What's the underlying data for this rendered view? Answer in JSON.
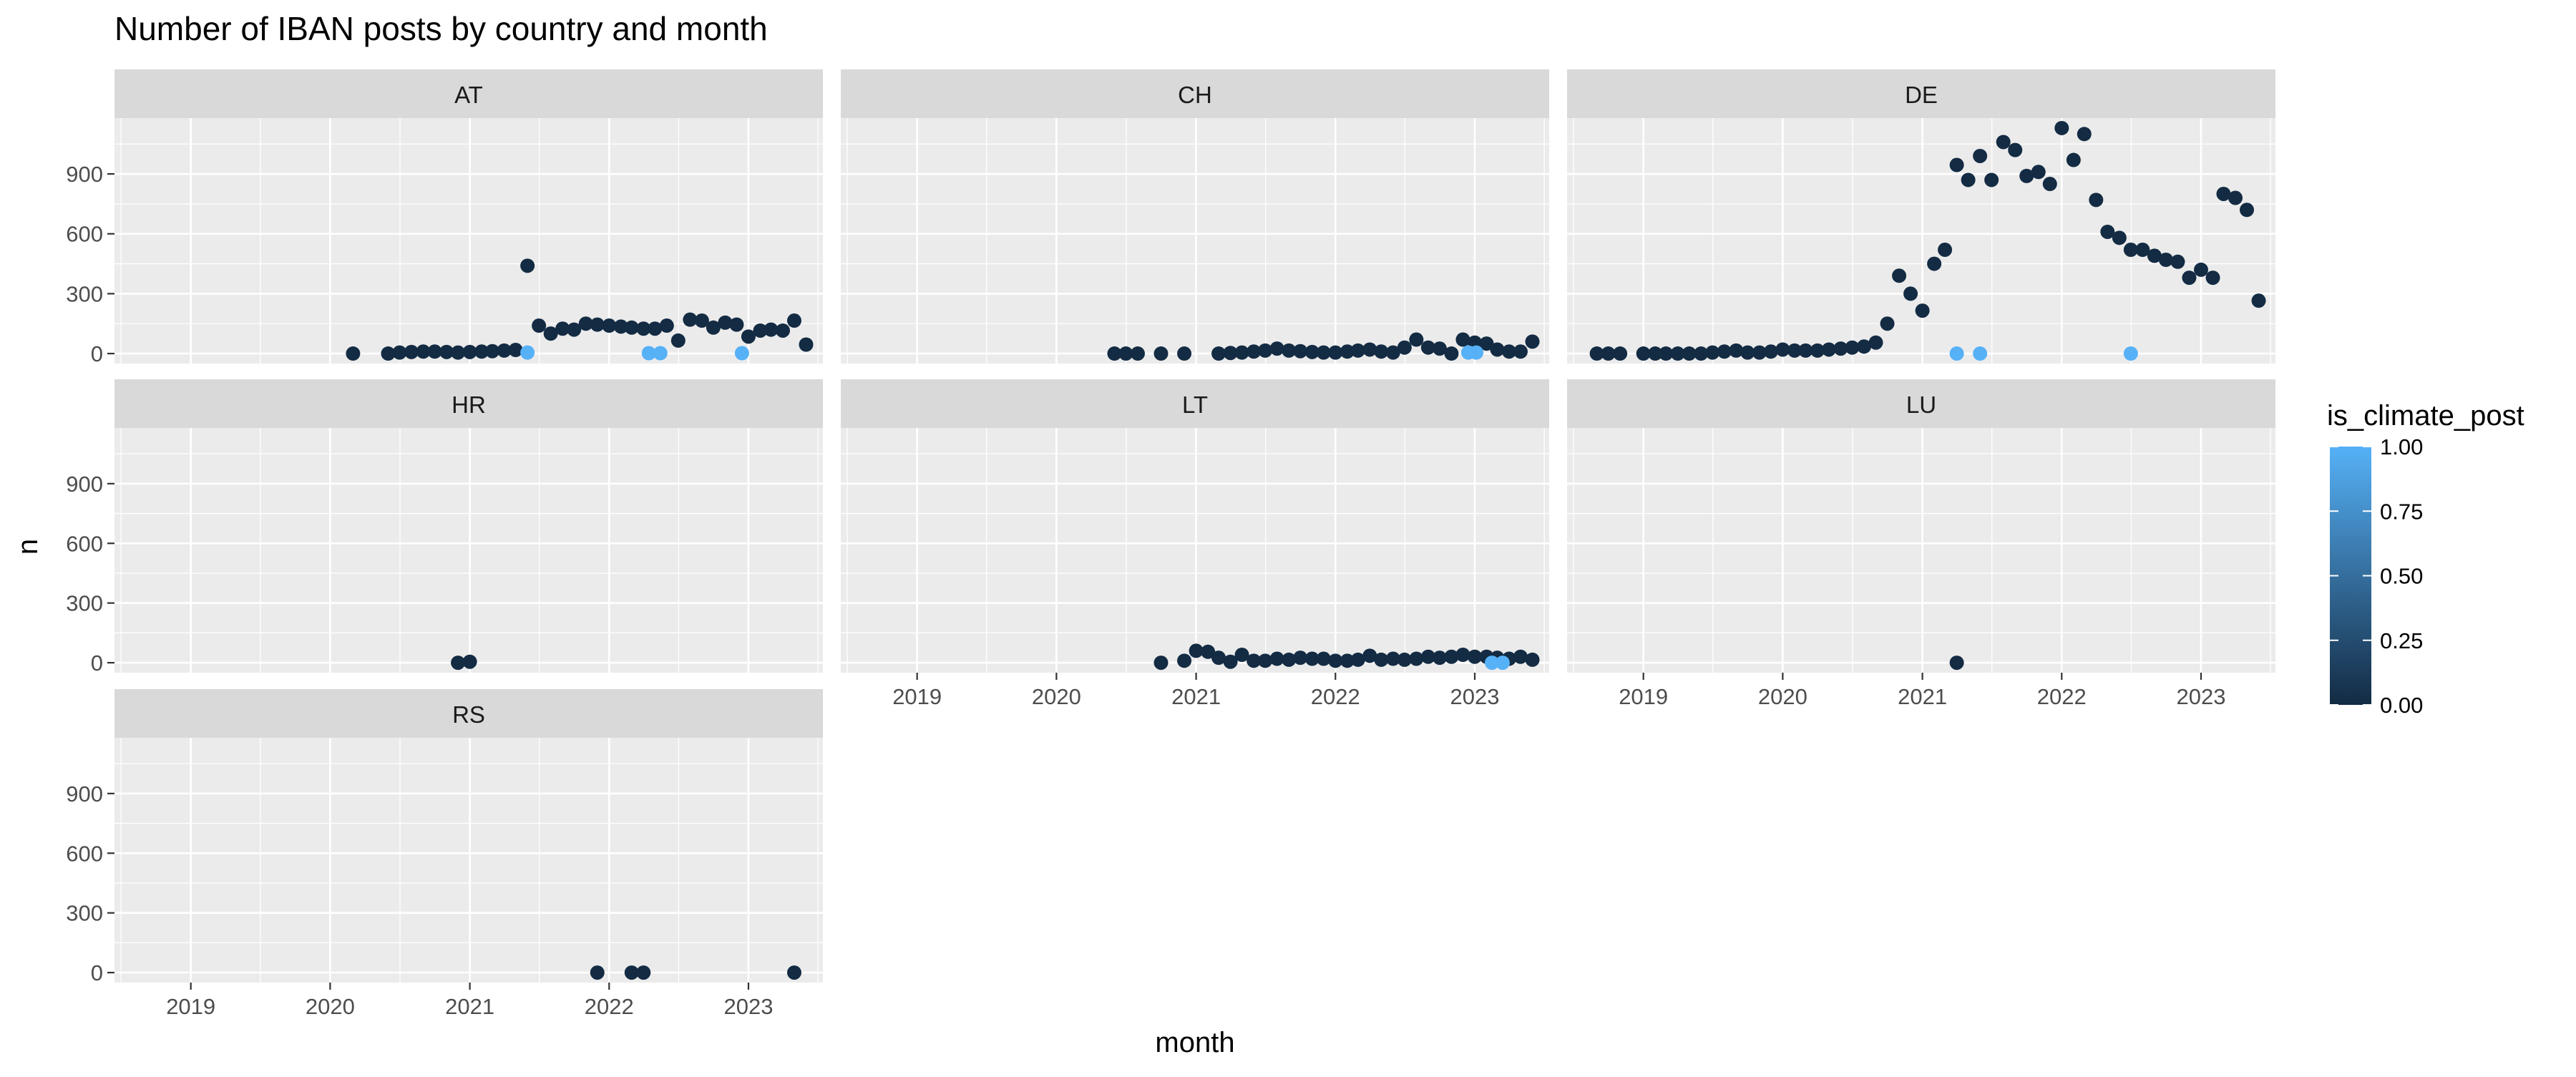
{
  "chart_data": {
    "type": "scatter",
    "title": "Number of IBAN posts by country and month",
    "xlabel": "month",
    "ylabel": "n",
    "xlim": [
      "2018-06-15",
      "2023-07-15"
    ],
    "ylim": [
      -50,
      1180
    ],
    "x_ticks": [
      "2019-01-01",
      "2020-01-01",
      "2021-01-01",
      "2022-01-01",
      "2023-01-01"
    ],
    "x_tick_labels": [
      "2019",
      "2020",
      "2021",
      "2022",
      "2023"
    ],
    "y_ticks": [
      0,
      300,
      600,
      900
    ],
    "y_tick_labels": [
      "0",
      "300",
      "600",
      "900"
    ],
    "grid": true,
    "legend": {
      "title": "is_climate_post",
      "placement": "right",
      "type": "colorbar",
      "ticks": [
        1.0,
        0.75,
        0.5,
        0.25,
        0.0
      ],
      "tick_labels": [
        "1.00",
        "0.75",
        "0.50",
        "0.25",
        "0.00"
      ],
      "low_color": "#132B43",
      "high_color": "#56B1F7"
    },
    "panels": [
      {
        "name": "AT",
        "points": [
          [
            "2020-03-01",
            0,
            0
          ],
          [
            "2020-06-01",
            0,
            0
          ],
          [
            "2020-07-01",
            5,
            0
          ],
          [
            "2020-08-01",
            8,
            0
          ],
          [
            "2020-09-01",
            10,
            0
          ],
          [
            "2020-10-01",
            10,
            0
          ],
          [
            "2020-11-01",
            8,
            0
          ],
          [
            "2020-12-01",
            5,
            0
          ],
          [
            "2021-01-01",
            8,
            0
          ],
          [
            "2021-02-01",
            10,
            0
          ],
          [
            "2021-03-01",
            12,
            0
          ],
          [
            "2021-04-01",
            15,
            0
          ],
          [
            "2021-05-01",
            18,
            0
          ],
          [
            "2021-06-01",
            440,
            0
          ],
          [
            "2021-06-01",
            5,
            1
          ],
          [
            "2021-07-01",
            140,
            0
          ],
          [
            "2021-08-01",
            100,
            0
          ],
          [
            "2021-09-01",
            125,
            0
          ],
          [
            "2021-10-01",
            120,
            0
          ],
          [
            "2021-11-01",
            150,
            0
          ],
          [
            "2021-12-01",
            145,
            0
          ],
          [
            "2022-01-01",
            140,
            0
          ],
          [
            "2022-02-01",
            135,
            0
          ],
          [
            "2022-03-01",
            130,
            0
          ],
          [
            "2022-04-01",
            125,
            0
          ],
          [
            "2022-05-01",
            125,
            0
          ],
          [
            "2022-06-01",
            140,
            0
          ],
          [
            "2022-07-01",
            65,
            0
          ],
          [
            "2022-08-01",
            170,
            0
          ],
          [
            "2022-09-01",
            165,
            0
          ],
          [
            "2022-10-01",
            130,
            0
          ],
          [
            "2022-11-01",
            155,
            0
          ],
          [
            "2022-12-01",
            145,
            0
          ],
          [
            "2023-01-01",
            85,
            0
          ],
          [
            "2023-02-01",
            115,
            0
          ],
          [
            "2023-03-01",
            120,
            0
          ],
          [
            "2023-04-01",
            115,
            0
          ],
          [
            "2023-05-01",
            165,
            0
          ],
          [
            "2023-06-01",
            45,
            0
          ],
          [
            "2022-04-15",
            2,
            1
          ],
          [
            "2022-05-15",
            2,
            1
          ],
          [
            "2022-12-15",
            2,
            1
          ]
        ]
      },
      {
        "name": "CH",
        "points": [
          [
            "2020-06-01",
            0,
            0
          ],
          [
            "2020-07-01",
            0,
            0
          ],
          [
            "2020-08-01",
            0,
            0
          ],
          [
            "2020-10-01",
            0,
            0
          ],
          [
            "2020-12-01",
            0,
            0
          ],
          [
            "2021-03-01",
            0,
            0
          ],
          [
            "2021-04-01",
            3,
            0
          ],
          [
            "2021-05-01",
            5,
            0
          ],
          [
            "2021-06-01",
            10,
            0
          ],
          [
            "2021-07-01",
            15,
            0
          ],
          [
            "2021-08-01",
            25,
            0
          ],
          [
            "2021-09-01",
            15,
            0
          ],
          [
            "2021-10-01",
            12,
            0
          ],
          [
            "2021-11-01",
            8,
            0
          ],
          [
            "2021-12-01",
            5,
            0
          ],
          [
            "2022-01-01",
            5,
            0
          ],
          [
            "2022-02-01",
            10,
            0
          ],
          [
            "2022-03-01",
            15,
            0
          ],
          [
            "2022-04-01",
            20,
            0
          ],
          [
            "2022-05-01",
            10,
            0
          ],
          [
            "2022-06-01",
            5,
            0
          ],
          [
            "2022-07-01",
            30,
            0
          ],
          [
            "2022-08-01",
            70,
            0
          ],
          [
            "2022-09-01",
            30,
            0
          ],
          [
            "2022-10-01",
            25,
            0
          ],
          [
            "2022-11-01",
            0,
            0
          ],
          [
            "2022-12-01",
            70,
            0
          ],
          [
            "2023-01-01",
            55,
            0
          ],
          [
            "2023-02-01",
            50,
            0
          ],
          [
            "2023-03-01",
            20,
            0
          ],
          [
            "2023-04-01",
            10,
            0
          ],
          [
            "2023-05-01",
            10,
            0
          ],
          [
            "2023-06-01",
            60,
            0
          ],
          [
            "2022-12-15",
            5,
            1
          ],
          [
            "2023-01-05",
            5,
            1
          ]
        ]
      },
      {
        "name": "DE",
        "points": [
          [
            "2018-09-01",
            0,
            0
          ],
          [
            "2018-10-01",
            0,
            0
          ],
          [
            "2018-11-01",
            0,
            0
          ],
          [
            "2019-01-01",
            0,
            0
          ],
          [
            "2019-02-01",
            0,
            0
          ],
          [
            "2019-03-01",
            0,
            0
          ],
          [
            "2019-04-01",
            0,
            0
          ],
          [
            "2019-05-01",
            0,
            0
          ],
          [
            "2019-06-01",
            0,
            0
          ],
          [
            "2019-07-01",
            5,
            0
          ],
          [
            "2019-08-01",
            10,
            0
          ],
          [
            "2019-09-01",
            15,
            0
          ],
          [
            "2019-10-01",
            5,
            0
          ],
          [
            "2019-11-01",
            5,
            0
          ],
          [
            "2019-12-01",
            10,
            0
          ],
          [
            "2020-01-01",
            20,
            0
          ],
          [
            "2020-02-01",
            15,
            0
          ],
          [
            "2020-03-01",
            15,
            0
          ],
          [
            "2020-04-01",
            15,
            0
          ],
          [
            "2020-05-01",
            20,
            0
          ],
          [
            "2020-06-01",
            25,
            0
          ],
          [
            "2020-07-01",
            30,
            0
          ],
          [
            "2020-08-01",
            35,
            0
          ],
          [
            "2020-09-01",
            55,
            0
          ],
          [
            "2020-10-01",
            150,
            0
          ],
          [
            "2020-11-01",
            390,
            0
          ],
          [
            "2020-12-01",
            300,
            0
          ],
          [
            "2021-01-01",
            215,
            0
          ],
          [
            "2021-02-01",
            450,
            0
          ],
          [
            "2021-03-01",
            520,
            0
          ],
          [
            "2021-04-01",
            945,
            0
          ],
          [
            "2021-05-01",
            870,
            0
          ],
          [
            "2021-06-01",
            990,
            0
          ],
          [
            "2021-07-01",
            870,
            0
          ],
          [
            "2021-08-01",
            1060,
            0
          ],
          [
            "2021-09-01",
            1020,
            0
          ],
          [
            "2021-10-01",
            890,
            0
          ],
          [
            "2021-11-01",
            910,
            0
          ],
          [
            "2021-12-01",
            850,
            0
          ],
          [
            "2022-01-01",
            1130,
            0
          ],
          [
            "2022-02-01",
            970,
            0
          ],
          [
            "2022-03-01",
            1100,
            0
          ],
          [
            "2022-04-01",
            770,
            0
          ],
          [
            "2022-05-01",
            610,
            0
          ],
          [
            "2022-06-01",
            580,
            0
          ],
          [
            "2022-07-01",
            520,
            0
          ],
          [
            "2022-08-01",
            520,
            0
          ],
          [
            "2022-09-01",
            490,
            0
          ],
          [
            "2022-10-01",
            470,
            0
          ],
          [
            "2022-11-01",
            460,
            0
          ],
          [
            "2022-12-01",
            380,
            0
          ],
          [
            "2023-01-01",
            420,
            0
          ],
          [
            "2023-02-01",
            380,
            0
          ],
          [
            "2023-03-01",
            800,
            0
          ],
          [
            "2023-04-01",
            780,
            0
          ],
          [
            "2023-05-01",
            720,
            0
          ],
          [
            "2023-06-01",
            265,
            0
          ],
          [
            "2021-04-01",
            0,
            1
          ],
          [
            "2021-06-01",
            0,
            1
          ],
          [
            "2022-07-01",
            0,
            1
          ]
        ]
      },
      {
        "name": "HR",
        "points": [
          [
            "2020-12-01",
            0,
            0
          ],
          [
            "2021-01-01",
            5,
            0
          ]
        ]
      },
      {
        "name": "LT",
        "points": [
          [
            "2020-10-01",
            0,
            0
          ],
          [
            "2020-12-01",
            10,
            0
          ],
          [
            "2021-01-01",
            60,
            0
          ],
          [
            "2021-02-01",
            55,
            0
          ],
          [
            "2021-03-01",
            25,
            0
          ],
          [
            "2021-04-01",
            5,
            0
          ],
          [
            "2021-05-01",
            40,
            0
          ],
          [
            "2021-06-01",
            10,
            0
          ],
          [
            "2021-07-01",
            10,
            0
          ],
          [
            "2021-08-01",
            20,
            0
          ],
          [
            "2021-09-01",
            15,
            0
          ],
          [
            "2021-10-01",
            25,
            0
          ],
          [
            "2021-11-01",
            20,
            0
          ],
          [
            "2021-12-01",
            20,
            0
          ],
          [
            "2022-01-01",
            10,
            0
          ],
          [
            "2022-02-01",
            10,
            0
          ],
          [
            "2022-03-01",
            15,
            0
          ],
          [
            "2022-04-01",
            35,
            0
          ],
          [
            "2022-05-01",
            15,
            0
          ],
          [
            "2022-06-01",
            20,
            0
          ],
          [
            "2022-07-01",
            15,
            0
          ],
          [
            "2022-08-01",
            20,
            0
          ],
          [
            "2022-09-01",
            30,
            0
          ],
          [
            "2022-10-01",
            25,
            0
          ],
          [
            "2022-11-01",
            30,
            0
          ],
          [
            "2022-12-01",
            40,
            0
          ],
          [
            "2023-01-01",
            30,
            0
          ],
          [
            "2023-02-01",
            30,
            0
          ],
          [
            "2023-03-01",
            25,
            0
          ],
          [
            "2023-04-01",
            20,
            0
          ],
          [
            "2023-05-01",
            30,
            0
          ],
          [
            "2023-06-01",
            15,
            0
          ],
          [
            "2023-02-15",
            0,
            1
          ],
          [
            "2023-03-15",
            0,
            1
          ]
        ]
      },
      {
        "name": "LU",
        "points": [
          [
            "2021-04-01",
            0,
            0
          ]
        ]
      },
      {
        "name": "RS",
        "points": [
          [
            "2021-12-01",
            0,
            0
          ],
          [
            "2022-03-01",
            0,
            0
          ],
          [
            "2022-04-01",
            0,
            0
          ],
          [
            "2023-05-01",
            0,
            0
          ]
        ]
      }
    ]
  }
}
